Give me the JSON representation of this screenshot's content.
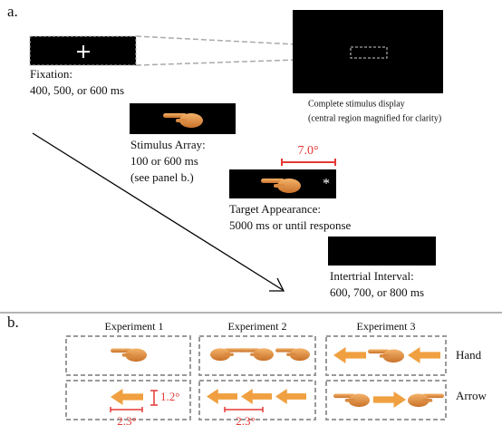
{
  "panel_a": {
    "label": "a.",
    "display_caption": [
      "Complete stimulus display",
      "(central region magnified for clarity)"
    ],
    "steps": [
      {
        "lines": [
          "Fixation:",
          "400, 500, or 600 ms"
        ]
      },
      {
        "lines": [
          "Stimulus Array:",
          "100 or 600 ms",
          "(see panel b.)"
        ]
      },
      {
        "lines": [
          "Target Appearance:",
          "5000 ms or until response"
        ]
      },
      {
        "lines": [
          "Intertrial Interval:",
          "600, 700, or 800 ms"
        ]
      }
    ],
    "scale_label": "7.0°",
    "target_marker": "*"
  },
  "panel_b": {
    "label": "b.",
    "columns": [
      "Experiment 1",
      "Experiment 2",
      "Experiment 3"
    ],
    "rows": [
      "Hand",
      "Arrow"
    ],
    "height_label": "1.2°",
    "width_labels": [
      "2.3°",
      "2.3°"
    ]
  }
}
